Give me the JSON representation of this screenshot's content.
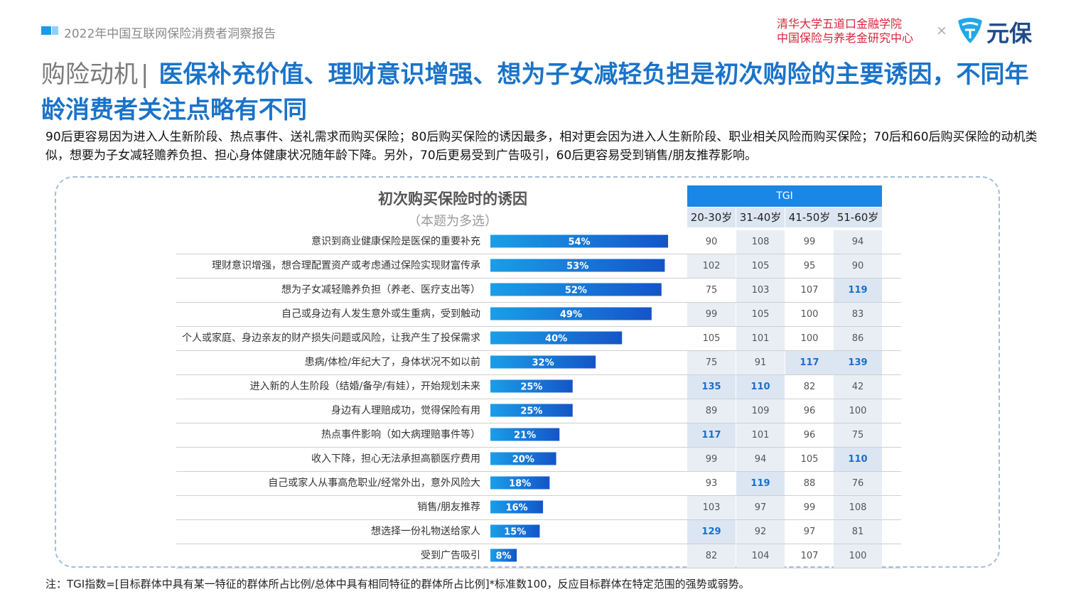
{
  "header": {
    "report_title": "2022年中国互联网保险消费者洞察报告",
    "institution_line1": "清华大学五道口金融学院",
    "institution_line2": "中国保险与养老金研究中心",
    "times_symbol": "×",
    "brand": "元保",
    "logo_icon": "shield-icon"
  },
  "headline": {
    "label": "购险动机",
    "separator": "|",
    "title": "医保补充价值、理财意识增强、想为子女减轻负担是初次购险的主要诱因，不同年龄消费者关注点略有不同"
  },
  "description": "90后更容易因为进入人生新阶段、热点事件、送礼需求而购买保险；80后购买保险的诱因最多，相对更会因为进入人生新阶段、职业相关风险而购买保险；70后和60后购买保险的动机类似，想要为子女减轻赡养负担、担心身体健康状况随年龄下降。另外，70后更易受到广告吸引，60后更容易受到销售/朋友推荐影响。",
  "chart_data": {
    "type": "bar",
    "orientation": "horizontal",
    "title": "初次购买保险时的诱因",
    "subtitle": "（本题为多选）",
    "value_unit": "%",
    "xlim": [
      0,
      100
    ],
    "categories": [
      "意识到商业健康保险是医保的重要补充",
      "理财意识增强，想合理配置资产或考虑通过保险实现财富传承",
      "想为子女减轻赡养负担（养老、医疗支出等）",
      "自己或身边有人发生意外或生重病，受到触动",
      "个人或家庭、身边亲友的财产损失问题或风险，让我产生了投保需求",
      "患病/体检/年纪大了，身体状况不如以前",
      "进入新的人生阶段（结婚/备孕/有娃），开始规划未来",
      "身边有人理赔成功，觉得保险有用",
      "热点事件影响（如大病理赔事件等）",
      "收入下降，担心无法承担高额医疗费用",
      "自己或家人从事高危职业/经常外出，意外风险大",
      "销售/朋友推荐",
      "想选择一份礼物送给家人",
      "受到广告吸引"
    ],
    "values": [
      54,
      53,
      52,
      49,
      40,
      32,
      25,
      25,
      21,
      20,
      18,
      16,
      15,
      8
    ],
    "value_labels": [
      "54%",
      "53%",
      "52%",
      "49%",
      "40%",
      "32%",
      "25%",
      "25%",
      "21%",
      "20%",
      "18%",
      "16%",
      "15%",
      "8%"
    ],
    "tgi": {
      "header": "TGI",
      "age_groups": [
        "20-30岁",
        "31-40岁",
        "41-50岁",
        "51-60岁"
      ],
      "rows": [
        [
          90,
          108,
          99,
          94
        ],
        [
          102,
          105,
          95,
          90
        ],
        [
          75,
          103,
          107,
          119
        ],
        [
          99,
          105,
          100,
          83
        ],
        [
          105,
          101,
          100,
          86
        ],
        [
          75,
          91,
          117,
          139
        ],
        [
          135,
          110,
          82,
          42
        ],
        [
          89,
          109,
          96,
          100
        ],
        [
          117,
          101,
          96,
          75
        ],
        [
          99,
          94,
          105,
          110
        ],
        [
          93,
          119,
          88,
          76
        ],
        [
          103,
          97,
          99,
          108
        ],
        [
          129,
          92,
          97,
          81
        ],
        [
          82,
          104,
          107,
          100
        ]
      ],
      "highlight_threshold": 110
    },
    "colors": {
      "bar_start": "#1a9ee8",
      "bar_end": "#1455c8",
      "tgi_header": "#1a86e6",
      "highlight_text": "#1a6fc9"
    }
  },
  "footnote": "注：TGI指数=[目标群体中具有某一特征的群体所占比例/总体中具有相同特征的群体所占比例]*标准数100，反应目标群体在特定范围的强势或弱势。"
}
